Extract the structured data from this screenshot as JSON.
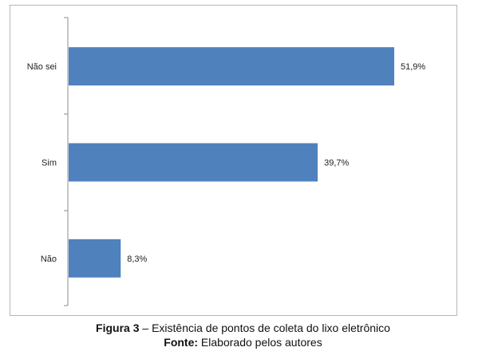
{
  "chart_data": {
    "type": "bar",
    "orientation": "horizontal",
    "categories": [
      "Não sei",
      "Sim",
      "Não"
    ],
    "values": [
      51.9,
      39.7,
      8.3
    ],
    "value_labels": [
      "51,9%",
      "39,7%",
      "8,3%"
    ],
    "xlim": [
      0,
      60
    ],
    "grid": false,
    "legend": "none",
    "bar_color": "#4f81bd"
  },
  "caption": {
    "figure_label": "Figura 3",
    "figure_text": " – Existência de pontos de coleta do lixo eletrônico",
    "source_label": "Fonte:",
    "source_text": " Elaborado pelos autores"
  }
}
